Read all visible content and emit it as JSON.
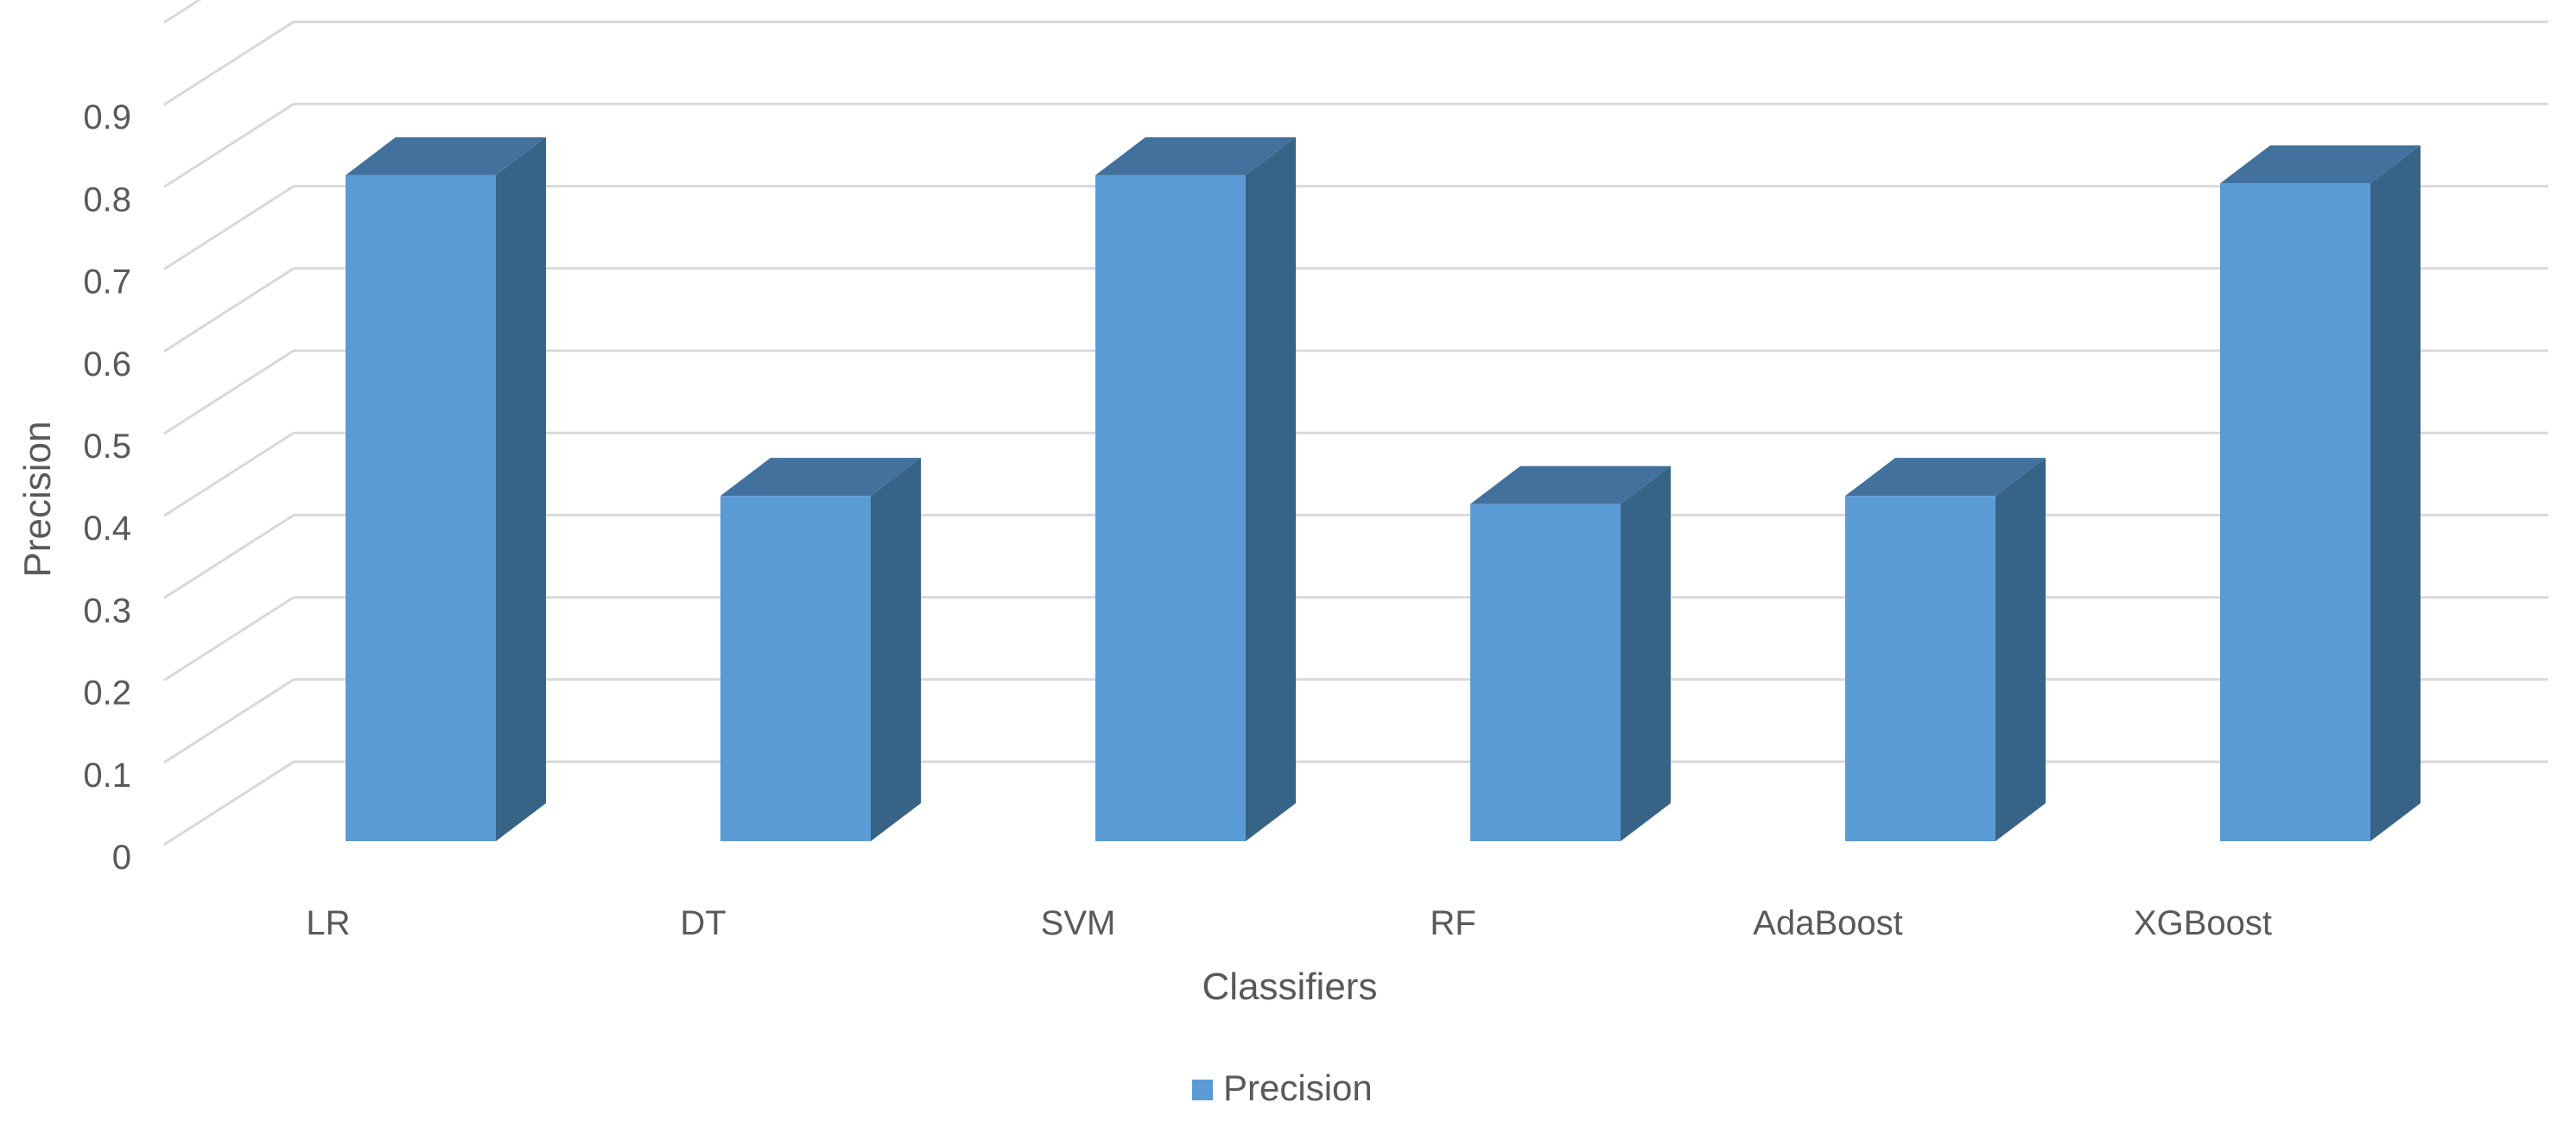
{
  "chart_data": {
    "type": "bar",
    "style": "3d-column",
    "categories": [
      "LR",
      "DT",
      "SVM",
      "RF",
      "AdaBoost",
      "XGBoost"
    ],
    "series": [
      {
        "name": "Precision",
        "values": [
          0.81,
          0.42,
          0.81,
          0.41,
          0.42,
          0.8
        ]
      }
    ],
    "xlabel": "Classifiers",
    "ylabel": "Precision",
    "ylim": [
      0,
      0.9
    ],
    "yticks": [
      "0",
      "0.1",
      "0.2",
      "0.3",
      "0.4",
      "0.5",
      "0.6",
      "0.7",
      "0.8",
      "0.9"
    ],
    "grid": true,
    "legend": {
      "position": "bottom",
      "entries": [
        "Precision"
      ]
    },
    "colors": {
      "front": "#5b9bd5",
      "top": "#41719c",
      "side": "#376387",
      "grid": "#d9d9d9",
      "text": "#595959"
    }
  }
}
